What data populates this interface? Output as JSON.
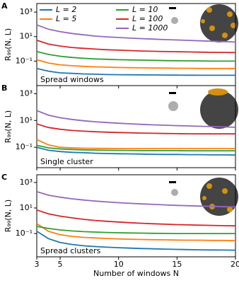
{
  "chart_data": [
    {
      "type": "line",
      "panel_label": "A",
      "annotation": "Spread windows",
      "y_label": "R₉₉(N, L)",
      "y_scale": "log",
      "legend": "upper left",
      "x": [
        3,
        4,
        5,
        6,
        7,
        8,
        9,
        10,
        11,
        12,
        13,
        14,
        15,
        16,
        17,
        18,
        19,
        20
      ],
      "xlim": [
        3,
        20
      ],
      "xticks": [
        3,
        5,
        10,
        15,
        20
      ],
      "ylim": [
        0.001,
        5000
      ],
      "yticks": [
        {
          "value": 1000,
          "label": "10³"
        },
        {
          "value": 10,
          "label": "10¹"
        },
        {
          "value": 0.1,
          "label": "10⁻¹"
        }
      ],
      "series": [
        {
          "name": "L = 2",
          "color": "#1f77b4",
          "values": [
            0.025,
            0.015,
            0.011,
            0.01,
            0.009,
            0.0085,
            0.008,
            0.0078,
            0.0076,
            0.0075,
            0.0074,
            0.0073,
            0.0072,
            0.0071,
            0.007,
            0.007,
            0.007,
            0.007
          ]
        },
        {
          "name": "L = 5",
          "color": "#ff7f0e",
          "values": [
            0.13,
            0.07,
            0.05,
            0.042,
            0.037,
            0.034,
            0.032,
            0.03,
            0.029,
            0.028,
            0.027,
            0.027,
            0.026,
            0.026,
            0.025,
            0.025,
            0.025,
            0.025
          ]
        },
        {
          "name": "L = 10",
          "color": "#2ca02c",
          "values": [
            0.6,
            0.35,
            0.25,
            0.2,
            0.17,
            0.15,
            0.14,
            0.13,
            0.125,
            0.12,
            0.115,
            0.11,
            0.108,
            0.105,
            0.103,
            0.1,
            0.1,
            0.1
          ]
        },
        {
          "name": "L = 100",
          "color": "#d62728",
          "values": [
            5,
            2.5,
            1.7,
            1.3,
            1.1,
            0.95,
            0.85,
            0.78,
            0.72,
            0.67,
            0.63,
            0.6,
            0.58,
            0.56,
            0.54,
            0.52,
            0.51,
            0.5
          ]
        },
        {
          "name": "L = 1000",
          "color": "#9467bd",
          "values": [
            90,
            40,
            25,
            18,
            14,
            11,
            9.5,
            8.5,
            7.5,
            6.8,
            6.2,
            5.7,
            5.3,
            4.9,
            4.5,
            4.2,
            3.9,
            3.6
          ]
        }
      ]
    },
    {
      "type": "line",
      "panel_label": "B",
      "annotation": "Single cluster",
      "y_label": "R₉₉(N, L)",
      "y_scale": "log",
      "x": [
        3,
        4,
        5,
        6,
        7,
        8,
        9,
        10,
        11,
        12,
        13,
        14,
        15,
        16,
        17,
        18,
        19,
        20
      ],
      "xlim": [
        3,
        20
      ],
      "xticks": [
        3,
        5,
        10,
        15,
        20
      ],
      "ylim": [
        0.003,
        4000
      ],
      "yticks": [
        {
          "value": 1000,
          "label": "10³"
        },
        {
          "value": 10,
          "label": "10¹"
        },
        {
          "value": 0.1,
          "label": "10⁻¹"
        }
      ],
      "series": [
        {
          "color": "#1f77b4",
          "values": [
            0.1,
            0.06,
            0.048,
            0.042,
            0.039,
            0.036,
            0.034,
            0.033,
            0.032,
            0.031,
            0.03,
            0.029,
            0.029,
            0.028,
            0.028,
            0.027,
            0.027,
            0.026
          ]
        },
        {
          "color": "#ff7f0e",
          "values": [
            0.38,
            0.15,
            0.1,
            0.09,
            0.085,
            0.083,
            0.082,
            0.081,
            0.08,
            0.08,
            0.08,
            0.08,
            0.08,
            0.08,
            0.08,
            0.08,
            0.08,
            0.08
          ]
        },
        {
          "color": "#2ca02c",
          "values": [
            0.14,
            0.09,
            0.075,
            0.068,
            0.064,
            0.062,
            0.06,
            0.059,
            0.058,
            0.057,
            0.057,
            0.056,
            0.056,
            0.055,
            0.055,
            0.055,
            0.055,
            0.055
          ]
        },
        {
          "color": "#d62728",
          "values": [
            5.5,
            3,
            2.2,
            1.8,
            1.6,
            1.45,
            1.35,
            1.27,
            1.2,
            1.15,
            1.1,
            1.07,
            1.04,
            1.02,
            1,
            1,
            1,
            1
          ]
        },
        {
          "color": "#9467bd",
          "values": [
            55,
            25,
            16,
            12,
            9.5,
            8,
            7,
            6.2,
            5.6,
            5.1,
            4.7,
            4.4,
            4.1,
            3.9,
            3.7,
            3.5,
            3.3,
            3.1
          ]
        }
      ]
    },
    {
      "type": "line",
      "panel_label": "C",
      "annotation": "Spread clusters",
      "y_label": "R₉₉(N, L)",
      "x_label": "Number of windows N",
      "y_scale": "log",
      "x": [
        3,
        4,
        5,
        6,
        7,
        8,
        9,
        10,
        11,
        12,
        13,
        14,
        15,
        16,
        17,
        18,
        19,
        20
      ],
      "xlim": [
        3,
        20
      ],
      "xticks": [
        3,
        5,
        10,
        15,
        20
      ],
      "ylim": [
        0.0015,
        4000
      ],
      "yticks": [
        {
          "value": 1000,
          "label": "10³"
        },
        {
          "value": 10,
          "label": "10¹"
        },
        {
          "value": 0.1,
          "label": "10⁻¹"
        }
      ],
      "series": [
        {
          "color": "#1f77b4",
          "values": [
            0.15,
            0.04,
            0.02,
            0.014,
            0.011,
            0.0095,
            0.0085,
            0.0078,
            0.0072,
            0.0067,
            0.0063,
            0.006,
            0.0057,
            0.0055,
            0.0053,
            0.0052,
            0.0051,
            0.005
          ]
        },
        {
          "color": "#ff7f0e",
          "values": [
            0.6,
            0.15,
            0.08,
            0.06,
            0.05,
            0.045,
            0.041,
            0.038,
            0.036,
            0.034,
            0.033,
            0.032,
            0.031,
            0.03,
            0.03,
            0.029,
            0.029,
            0.028
          ]
        },
        {
          "color": "#2ca02c",
          "values": [
            0.36,
            0.25,
            0.19,
            0.16,
            0.14,
            0.13,
            0.12,
            0.115,
            0.11,
            0.107,
            0.104,
            0.102,
            0.1,
            0.1,
            0.1,
            0.1,
            0.1,
            0.1
          ]
        },
        {
          "color": "#d62728",
          "values": [
            7,
            3.5,
            2.3,
            1.7,
            1.3,
            1.05,
            0.9,
            0.8,
            0.7,
            0.63,
            0.58,
            0.54,
            0.5,
            0.47,
            0.45,
            0.43,
            0.41,
            0.4
          ]
        },
        {
          "color": "#9467bd",
          "values": [
            190,
            100,
            70,
            52,
            42,
            35,
            30,
            26,
            23,
            21,
            19,
            17.5,
            16,
            15,
            14,
            13.5,
            12.5,
            12
          ]
        }
      ]
    }
  ]
}
